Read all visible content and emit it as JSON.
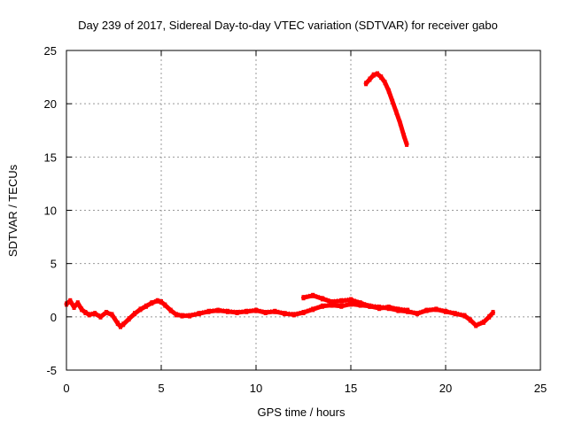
{
  "chart_data": {
    "type": "line",
    "title": "Day 239 of 2017, Sidereal Day-to-day VTEC variation (SDTVAR) for receiver gabo",
    "xlabel": "GPS time / hours",
    "ylabel": "SDTVAR / TECUs",
    "xlim": [
      0,
      25
    ],
    "ylim": [
      -5,
      25
    ],
    "xticks": [
      0,
      5,
      10,
      15,
      20,
      25
    ],
    "yticks": [
      -5,
      0,
      5,
      10,
      15,
      20,
      25
    ],
    "grid": true,
    "legend": "none",
    "series": [
      {
        "name": "SDTVAR",
        "color": "#ff0000",
        "segments": [
          {
            "x": [
              0.0,
              0.2,
              0.4,
              0.6,
              0.8,
              1.0,
              1.2,
              1.5,
              1.8,
              2.1,
              2.4,
              2.7,
              2.85,
              3.0,
              3.3,
              3.6,
              3.9,
              4.2,
              4.5,
              4.8,
              5.0,
              5.2,
              5.5,
              5.8,
              6.1,
              6.5,
              7.0,
              7.5,
              8.0,
              8.5,
              9.0,
              9.5,
              10.0,
              10.5,
              11.0,
              11.5,
              12.0,
              12.5,
              13.0,
              13.5,
              14.0,
              14.5,
              15.0,
              15.5,
              16.0,
              16.5,
              17.0,
              17.5,
              18.0,
              18.5,
              19.0,
              19.5,
              20.0,
              20.5,
              21.0,
              21.3,
              21.6,
              22.0,
              22.3,
              22.5
            ],
            "y": [
              1.2,
              1.5,
              0.9,
              1.3,
              0.7,
              0.4,
              0.2,
              0.3,
              0.0,
              0.4,
              0.2,
              -0.6,
              -0.9,
              -0.7,
              -0.2,
              0.3,
              0.7,
              1.0,
              1.3,
              1.5,
              1.4,
              1.1,
              0.6,
              0.2,
              0.1,
              0.1,
              0.3,
              0.5,
              0.6,
              0.5,
              0.4,
              0.5,
              0.6,
              0.4,
              0.5,
              0.3,
              0.2,
              0.4,
              0.7,
              1.0,
              1.1,
              1.0,
              1.2,
              1.1,
              1.0,
              0.9,
              0.8,
              0.6,
              0.5,
              0.3,
              0.6,
              0.7,
              0.5,
              0.3,
              0.1,
              -0.3,
              -0.8,
              -0.5,
              0.0,
              0.4
            ]
          },
          {
            "x": [
              12.5,
              13.0,
              13.5,
              14.0,
              14.5,
              15.0,
              15.5,
              16.0,
              16.5,
              17.0,
              17.5,
              18.0
            ],
            "y": [
              1.8,
              2.0,
              1.7,
              1.4,
              1.5,
              1.6,
              1.3,
              1.0,
              0.8,
              0.9,
              0.7,
              0.6
            ]
          },
          {
            "x": [
              15.8,
              16.0,
              16.2,
              16.4,
              16.6,
              16.8,
              17.0,
              17.2,
              17.4,
              17.6,
              17.8,
              17.95
            ],
            "y": [
              21.9,
              22.3,
              22.7,
              22.8,
              22.5,
              22.0,
              21.2,
              20.2,
              19.2,
              18.2,
              17.0,
              16.2
            ]
          }
        ]
      }
    ]
  }
}
